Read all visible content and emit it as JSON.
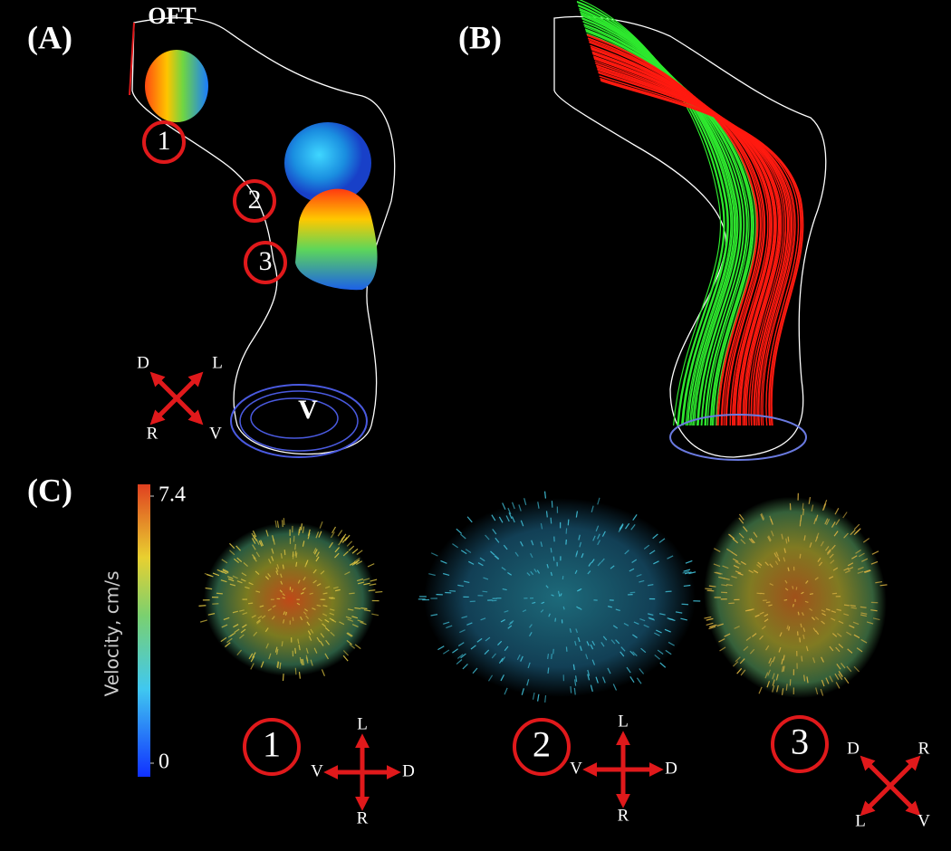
{
  "panel_a": {
    "label": "(A)",
    "vessel_label": "OFT",
    "ventricle_label": "V",
    "sections": [
      "1",
      "2",
      "3"
    ],
    "orientation": [
      "D",
      "L",
      "R",
      "V"
    ]
  },
  "panel_b": {
    "label": "(B)"
  },
  "panel_c": {
    "label": "(C)",
    "colorbar": {
      "title": "Velocity, cm/s",
      "range": [
        0,
        7.4
      ],
      "ticks": [
        0,
        7.4
      ]
    },
    "sections": [
      {
        "number": "1",
        "orientation": [
          "L",
          "V",
          "D",
          "R"
        ]
      },
      {
        "number": "2",
        "orientation": [
          "L",
          "V",
          "D",
          "R"
        ]
      },
      {
        "number": "3",
        "orientation": [
          "D",
          "R",
          "L",
          "V"
        ]
      }
    ]
  }
}
